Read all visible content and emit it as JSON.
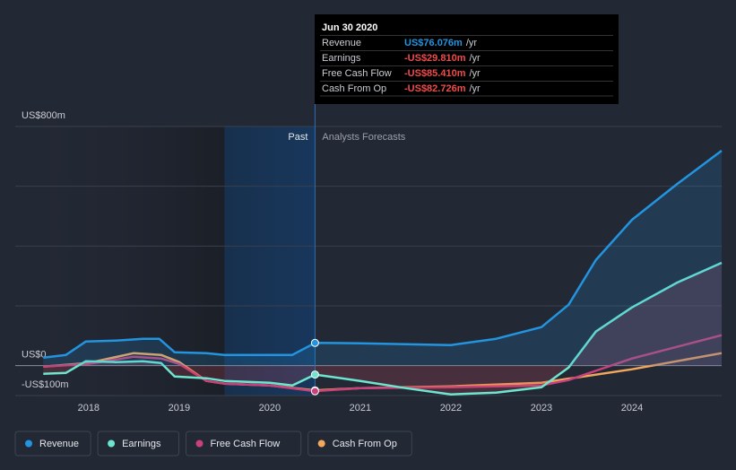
{
  "chart_data": {
    "type": "line",
    "ylim": [
      -100,
      800
    ],
    "yticks": [
      {
        "value": 800,
        "label": "US$800m"
      },
      {
        "value": 0,
        "label": "US$0"
      },
      {
        "value": -100,
        "label": "-US$100m"
      }
    ],
    "ygrid": [
      -100,
      0,
      200,
      400,
      600,
      800
    ],
    "xlim": [
      2017.19,
      2024.99
    ],
    "xticks": [
      2018,
      2019,
      2020,
      2021,
      2022,
      2023,
      2024
    ],
    "grid": true,
    "past_label": "Past",
    "forecast_label": "Analysts Forecasts",
    "divider_x": 2020.5,
    "series": [
      {
        "name": "Revenue",
        "color": "#2394df",
        "x": [
          2017.5,
          2017.75,
          2017.97,
          2018.3,
          2018.6,
          2018.78,
          2018.95,
          2019.3,
          2019.5,
          2020.0,
          2020.25,
          2020.5,
          2021,
          2021.5,
          2022,
          2022.5,
          2023,
          2023.3,
          2023.6,
          2024,
          2024.5,
          2024.99
        ],
        "values": [
          27,
          36,
          81,
          84,
          90,
          90,
          45,
          42,
          36,
          36,
          36,
          76.076,
          75,
          72,
          69,
          90,
          129,
          204,
          353,
          488,
          608,
          719
        ]
      },
      {
        "name": "Earnings",
        "color": "#6ee6cf",
        "x": [
          2017.5,
          2017.75,
          2017.97,
          2018.3,
          2018.6,
          2018.8,
          2018.95,
          2019.3,
          2019.5,
          2020.0,
          2020.25,
          2020.5,
          2021,
          2021.5,
          2022,
          2022.5,
          2023,
          2023.3,
          2023.6,
          2024,
          2024.5,
          2024.99
        ],
        "values": [
          -27,
          -24,
          15,
          12,
          15,
          9,
          -36,
          -42,
          -51,
          -57,
          -66,
          -29.81,
          -51,
          -75,
          -96,
          -90,
          -72,
          -6,
          114,
          195,
          278,
          344
        ]
      },
      {
        "name": "Free Cash Flow",
        "color": "#c7427c",
        "x": [
          2017.5,
          2018,
          2018.5,
          2018.8,
          2019,
          2019.3,
          2019.5,
          2020,
          2020.5,
          2021,
          2022,
          2023,
          2023.3,
          2024,
          2024.99
        ],
        "values": [
          -3,
          6,
          30,
          24,
          6,
          -51,
          -60,
          -66,
          -85.41,
          -75,
          -72,
          -66,
          -48,
          24,
          102
        ]
      },
      {
        "name": "Cash From Op",
        "color": "#f2a85c",
        "x": [
          2017.5,
          2018,
          2018.5,
          2018.8,
          2019,
          2019.3,
          2019.5,
          2020,
          2020.5,
          2021,
          2022,
          2023,
          2024,
          2024.99
        ],
        "values": [
          -3,
          9,
          42,
          36,
          12,
          -51,
          -60,
          -66,
          -82.726,
          -75,
          -69,
          -57,
          -12,
          42
        ]
      }
    ],
    "tooltip": {
      "title": "Jun 30 2020",
      "rows": [
        {
          "label": "Revenue",
          "value": 76.076,
          "value_label": "US$76.076m",
          "unit": "/yr"
        },
        {
          "label": "Earnings",
          "value": -29.81,
          "value_label": "-US$29.810m",
          "unit": "/yr"
        },
        {
          "label": "Free Cash Flow",
          "value": -85.41,
          "value_label": "-US$85.410m",
          "unit": "/yr"
        },
        {
          "label": "Cash From Op",
          "value": -82.726,
          "value_label": "-US$82.726m",
          "unit": "/yr"
        }
      ]
    }
  }
}
